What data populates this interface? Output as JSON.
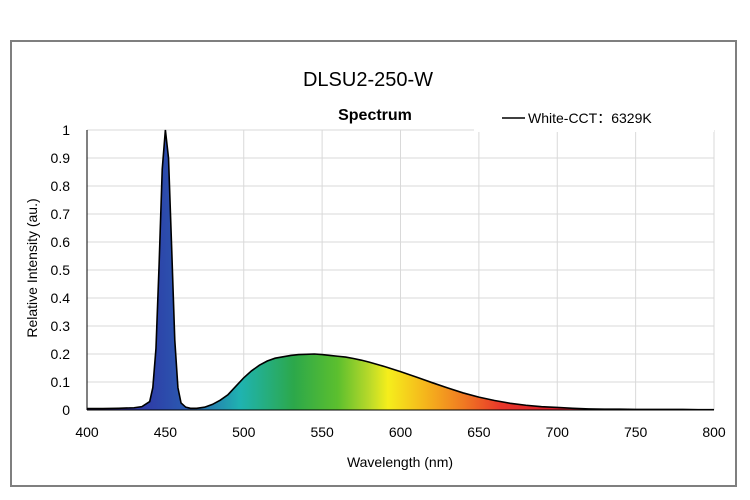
{
  "chart_data": {
    "type": "area",
    "title": "DLSU2-250-W",
    "subtitle": "Spectrum",
    "xlabel": "Wavelength (nm)",
    "ylabel": "Relative Intensity (au.)",
    "xlim": [
      400,
      800
    ],
    "ylim": [
      0,
      1
    ],
    "grid": true,
    "legend_position": "top-right",
    "x_ticks": [
      "400",
      "450",
      "500",
      "550",
      "600",
      "650",
      "700",
      "750",
      "800"
    ],
    "y_ticks": [
      "0",
      "0.1",
      "0.2",
      "0.3",
      "0.4",
      "0.5",
      "0.6",
      "0.7",
      "0.8",
      "0.9",
      "1"
    ],
    "series": [
      {
        "name": "White-CCT：6329K",
        "line_color": "#000000",
        "x": [
          400,
          410,
          420,
          430,
          435,
          440,
          442,
          444,
          446,
          448,
          450,
          452,
          454,
          456,
          458,
          460,
          463,
          466,
          470,
          475,
          480,
          485,
          490,
          495,
          500,
          505,
          510,
          515,
          520,
          525,
          530,
          535,
          540,
          545,
          550,
          555,
          560,
          565,
          570,
          575,
          580,
          585,
          590,
          595,
          600,
          610,
          620,
          630,
          640,
          650,
          660,
          670,
          680,
          690,
          700,
          710,
          720,
          730,
          740,
          750,
          760,
          770,
          780,
          790,
          800
        ],
        "y": [
          0.005,
          0.005,
          0.006,
          0.008,
          0.012,
          0.03,
          0.08,
          0.22,
          0.52,
          0.86,
          1.0,
          0.9,
          0.58,
          0.25,
          0.08,
          0.025,
          0.01,
          0.006,
          0.006,
          0.01,
          0.02,
          0.035,
          0.055,
          0.085,
          0.115,
          0.14,
          0.16,
          0.175,
          0.185,
          0.19,
          0.195,
          0.198,
          0.199,
          0.2,
          0.198,
          0.195,
          0.192,
          0.189,
          0.184,
          0.178,
          0.171,
          0.163,
          0.155,
          0.146,
          0.137,
          0.118,
          0.098,
          0.079,
          0.061,
          0.046,
          0.034,
          0.024,
          0.017,
          0.012,
          0.009,
          0.006,
          0.004,
          0.003,
          0.003,
          0.002,
          0.002,
          0.002,
          0.002,
          0.001,
          0.001
        ]
      }
    ]
  }
}
